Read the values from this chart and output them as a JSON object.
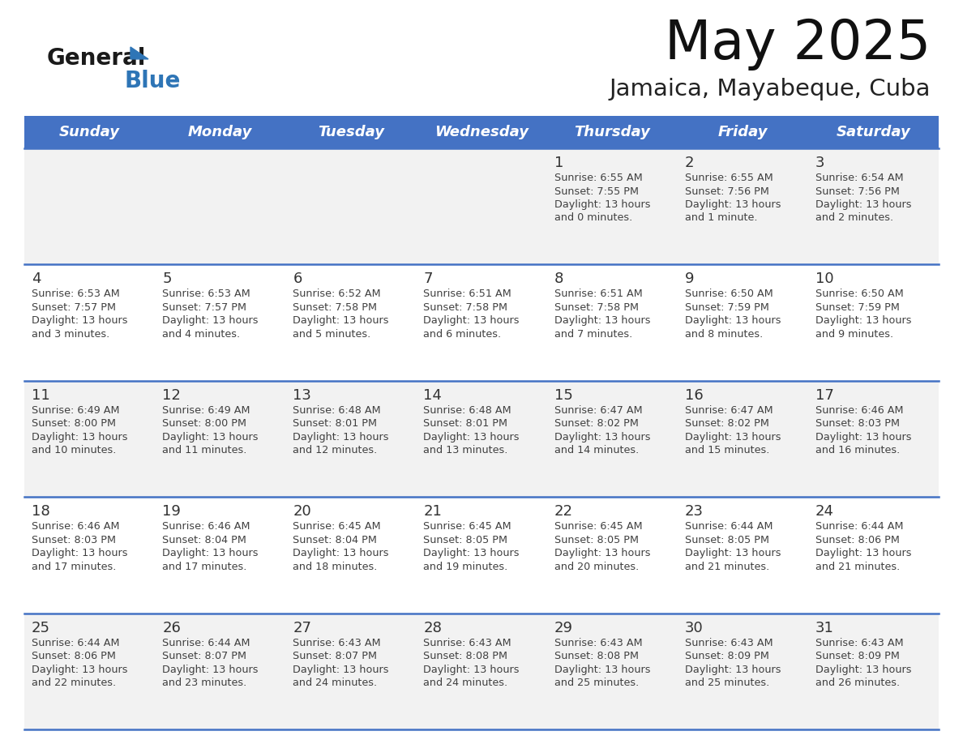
{
  "title": "May 2025",
  "subtitle": "Jamaica, Mayabeque, Cuba",
  "days_of_week": [
    "Sunday",
    "Monday",
    "Tuesday",
    "Wednesday",
    "Thursday",
    "Friday",
    "Saturday"
  ],
  "header_bg": "#4472C4",
  "header_text_color": "#FFFFFF",
  "row_bg_odd": "#F2F2F2",
  "row_bg_even": "#FFFFFF",
  "cell_text_color": "#404040",
  "day_number_color": "#333333",
  "separator_color": "#4472C4",
  "calendar_data": [
    [
      null,
      null,
      null,
      null,
      {
        "day": 1,
        "sunrise": "6:55 AM",
        "sunset": "7:55 PM",
        "daylight": "13 hours and 0 minutes."
      },
      {
        "day": 2,
        "sunrise": "6:55 AM",
        "sunset": "7:56 PM",
        "daylight": "13 hours and 1 minute."
      },
      {
        "day": 3,
        "sunrise": "6:54 AM",
        "sunset": "7:56 PM",
        "daylight": "13 hours and 2 minutes."
      }
    ],
    [
      {
        "day": 4,
        "sunrise": "6:53 AM",
        "sunset": "7:57 PM",
        "daylight": "13 hours and 3 minutes."
      },
      {
        "day": 5,
        "sunrise": "6:53 AM",
        "sunset": "7:57 PM",
        "daylight": "13 hours and 4 minutes."
      },
      {
        "day": 6,
        "sunrise": "6:52 AM",
        "sunset": "7:58 PM",
        "daylight": "13 hours and 5 minutes."
      },
      {
        "day": 7,
        "sunrise": "6:51 AM",
        "sunset": "7:58 PM",
        "daylight": "13 hours and 6 minutes."
      },
      {
        "day": 8,
        "sunrise": "6:51 AM",
        "sunset": "7:58 PM",
        "daylight": "13 hours and 7 minutes."
      },
      {
        "day": 9,
        "sunrise": "6:50 AM",
        "sunset": "7:59 PM",
        "daylight": "13 hours and 8 minutes."
      },
      {
        "day": 10,
        "sunrise": "6:50 AM",
        "sunset": "7:59 PM",
        "daylight": "13 hours and 9 minutes."
      }
    ],
    [
      {
        "day": 11,
        "sunrise": "6:49 AM",
        "sunset": "8:00 PM",
        "daylight": "13 hours and 10 minutes."
      },
      {
        "day": 12,
        "sunrise": "6:49 AM",
        "sunset": "8:00 PM",
        "daylight": "13 hours and 11 minutes."
      },
      {
        "day": 13,
        "sunrise": "6:48 AM",
        "sunset": "8:01 PM",
        "daylight": "13 hours and 12 minutes."
      },
      {
        "day": 14,
        "sunrise": "6:48 AM",
        "sunset": "8:01 PM",
        "daylight": "13 hours and 13 minutes."
      },
      {
        "day": 15,
        "sunrise": "6:47 AM",
        "sunset": "8:02 PM",
        "daylight": "13 hours and 14 minutes."
      },
      {
        "day": 16,
        "sunrise": "6:47 AM",
        "sunset": "8:02 PM",
        "daylight": "13 hours and 15 minutes."
      },
      {
        "day": 17,
        "sunrise": "6:46 AM",
        "sunset": "8:03 PM",
        "daylight": "13 hours and 16 minutes."
      }
    ],
    [
      {
        "day": 18,
        "sunrise": "6:46 AM",
        "sunset": "8:03 PM",
        "daylight": "13 hours and 17 minutes."
      },
      {
        "day": 19,
        "sunrise": "6:46 AM",
        "sunset": "8:04 PM",
        "daylight": "13 hours and 17 minutes."
      },
      {
        "day": 20,
        "sunrise": "6:45 AM",
        "sunset": "8:04 PM",
        "daylight": "13 hours and 18 minutes."
      },
      {
        "day": 21,
        "sunrise": "6:45 AM",
        "sunset": "8:05 PM",
        "daylight": "13 hours and 19 minutes."
      },
      {
        "day": 22,
        "sunrise": "6:45 AM",
        "sunset": "8:05 PM",
        "daylight": "13 hours and 20 minutes."
      },
      {
        "day": 23,
        "sunrise": "6:44 AM",
        "sunset": "8:05 PM",
        "daylight": "13 hours and 21 minutes."
      },
      {
        "day": 24,
        "sunrise": "6:44 AM",
        "sunset": "8:06 PM",
        "daylight": "13 hours and 21 minutes."
      }
    ],
    [
      {
        "day": 25,
        "sunrise": "6:44 AM",
        "sunset": "8:06 PM",
        "daylight": "13 hours and 22 minutes."
      },
      {
        "day": 26,
        "sunrise": "6:44 AM",
        "sunset": "8:07 PM",
        "daylight": "13 hours and 23 minutes."
      },
      {
        "day": 27,
        "sunrise": "6:43 AM",
        "sunset": "8:07 PM",
        "daylight": "13 hours and 24 minutes."
      },
      {
        "day": 28,
        "sunrise": "6:43 AM",
        "sunset": "8:08 PM",
        "daylight": "13 hours and 24 minutes."
      },
      {
        "day": 29,
        "sunrise": "6:43 AM",
        "sunset": "8:08 PM",
        "daylight": "13 hours and 25 minutes."
      },
      {
        "day": 30,
        "sunrise": "6:43 AM",
        "sunset": "8:09 PM",
        "daylight": "13 hours and 25 minutes."
      },
      {
        "day": 31,
        "sunrise": "6:43 AM",
        "sunset": "8:09 PM",
        "daylight": "13 hours and 26 minutes."
      }
    ]
  ],
  "logo_general_color": "#1a1a1a",
  "logo_blue_color": "#2E75B6",
  "figsize": [
    11.88,
    9.18
  ],
  "dpi": 100
}
